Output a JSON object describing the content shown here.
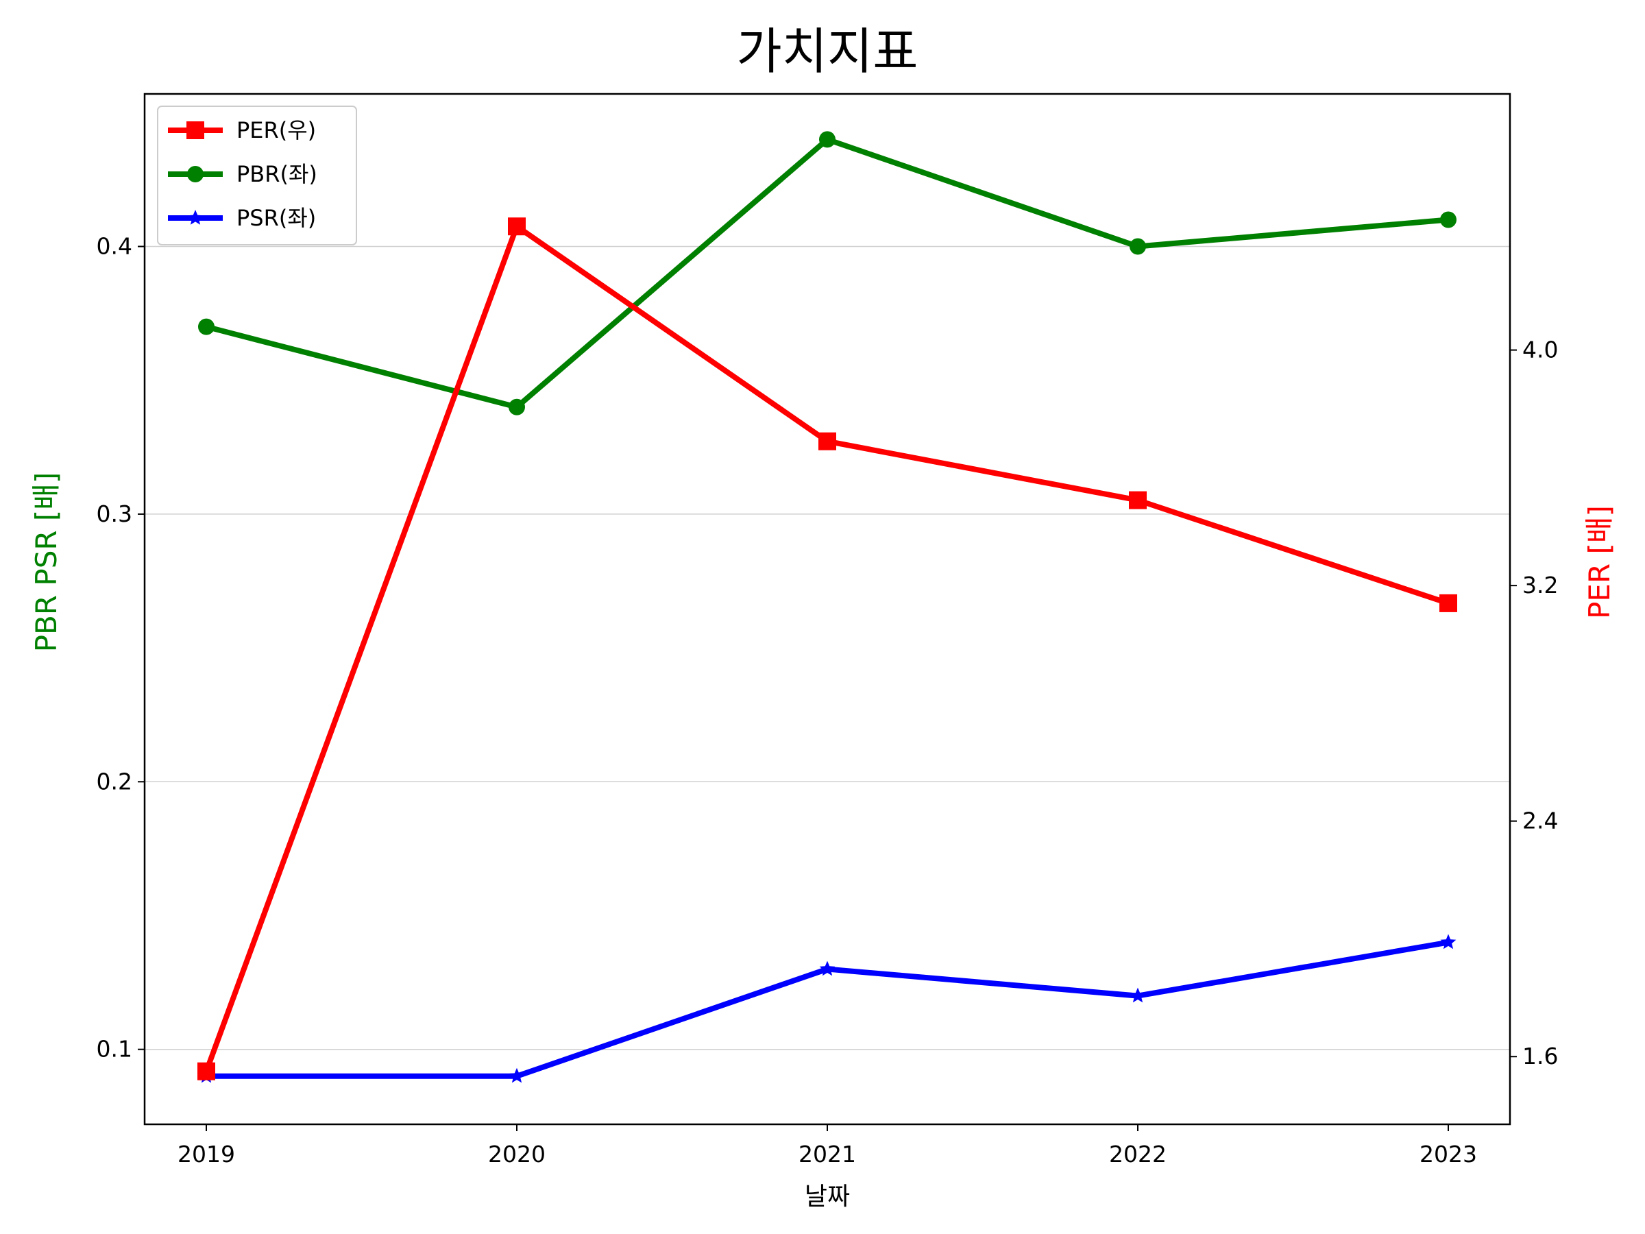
{
  "chart_data": {
    "type": "line",
    "title": "가치지표",
    "xlabel": "날짜",
    "ylabel_left": "PBR PSR [배]",
    "ylabel_right": "PER [배]",
    "categories": [
      "2019",
      "2020",
      "2021",
      "2022",
      "2023"
    ],
    "left_axis": {
      "ylim": [
        0.072,
        0.457
      ],
      "ticks": [
        0.1,
        0.2,
        0.3,
        0.4
      ],
      "tick_labels": [
        "0.1",
        "0.2",
        "0.3",
        "0.4"
      ],
      "color": "#008000"
    },
    "right_axis": {
      "ylim": [
        1.37,
        4.87
      ],
      "ticks": [
        1.6,
        2.4,
        3.2,
        4.0
      ],
      "tick_labels": [
        "1.6",
        "2.4",
        "3.2",
        "4.0"
      ],
      "color": "#ff0000"
    },
    "series": [
      {
        "name": "PER(우)",
        "axis": "right",
        "color": "#ff0000",
        "marker": "square",
        "values": [
          1.55,
          4.42,
          3.69,
          3.49,
          3.14
        ]
      },
      {
        "name": "PBR(좌)",
        "axis": "left",
        "color": "#008000",
        "marker": "circle",
        "values": [
          0.37,
          0.34,
          0.44,
          0.4,
          0.41
        ]
      },
      {
        "name": "PSR(좌)",
        "axis": "left",
        "color": "#0000ff",
        "marker": "star",
        "values": [
          0.09,
          0.09,
          0.13,
          0.12,
          0.14
        ]
      }
    ],
    "grid": "horizontal",
    "legend_position": "top-left"
  }
}
